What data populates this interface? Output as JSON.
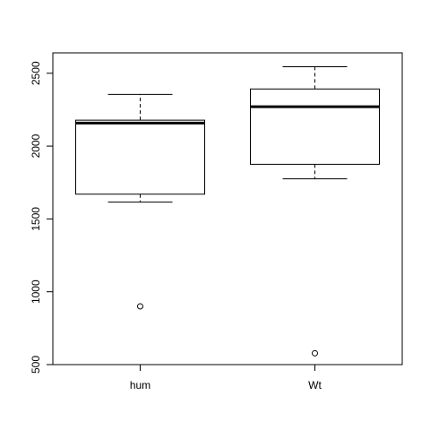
{
  "chart_data": {
    "type": "boxplot",
    "title": "",
    "xlabel": "",
    "ylabel": "",
    "categories": [
      "hum",
      "Wt"
    ],
    "ylim": [
      500,
      2640
    ],
    "yticks": [
      500,
      1000,
      1500,
      2000,
      2500
    ],
    "ytick_labels": [
      "500",
      "1000",
      "1500",
      "2000",
      "2500"
    ],
    "grid": false,
    "boxes": [
      {
        "name": "hum",
        "whisker_low": 1615,
        "q1": 1670,
        "median": 2158,
        "q3": 2178,
        "whisker_high": 2355,
        "outliers": [
          900
        ]
      },
      {
        "name": "Wt",
        "whisker_low": 1775,
        "q1": 1875,
        "median": 2270,
        "q3": 2392,
        "whisker_high": 2545,
        "outliers": [
          578
        ]
      }
    ]
  }
}
